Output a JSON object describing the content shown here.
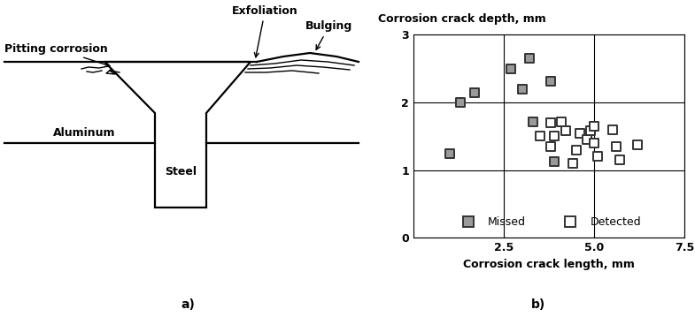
{
  "diagram": {
    "panel_label": "a)",
    "labels": {
      "pitting": "Pitting corrosion",
      "exfoliation": "Exfoliation",
      "bulging": "Bulging",
      "plate": "Aluminum",
      "fastener": "Steel"
    }
  },
  "chart_data": {
    "type": "scatter",
    "panel_label": "b)",
    "xlabel": "Corrosion crack length, mm",
    "ylabel": "Corrosion crack depth, mm",
    "xlim": [
      0,
      7.5
    ],
    "xticks": [
      2.5,
      {
        "value": 5,
        "label": "5.0"
      },
      7.5
    ],
    "ylim": [
      0,
      3
    ],
    "yticks": [
      0,
      1,
      2,
      3
    ],
    "grid": true,
    "legend": "lower center",
    "series": [
      {
        "name": "Missed",
        "color": "#9a9a9a",
        "marker": "square",
        "x": [
          1.0,
          1.3,
          1.7,
          2.7,
          3.0,
          3.2,
          3.3,
          3.8,
          3.9
        ],
        "values": [
          1.25,
          2.0,
          2.15,
          2.5,
          2.2,
          2.65,
          1.72,
          2.32,
          1.12
        ]
      },
      {
        "name": "Detected",
        "color": "#ffffff",
        "marker": "square",
        "x": [
          3.5,
          3.8,
          3.8,
          3.9,
          4.1,
          4.2,
          4.4,
          4.5,
          4.6,
          4.8,
          4.9,
          5.0,
          5.0,
          5.1,
          5.5,
          5.6,
          5.7,
          6.2
        ],
        "values": [
          1.5,
          1.7,
          1.35,
          1.5,
          1.72,
          1.58,
          1.1,
          1.3,
          1.55,
          1.45,
          1.58,
          1.65,
          1.4,
          1.2,
          1.6,
          1.35,
          1.15,
          1.38
        ]
      }
    ]
  }
}
